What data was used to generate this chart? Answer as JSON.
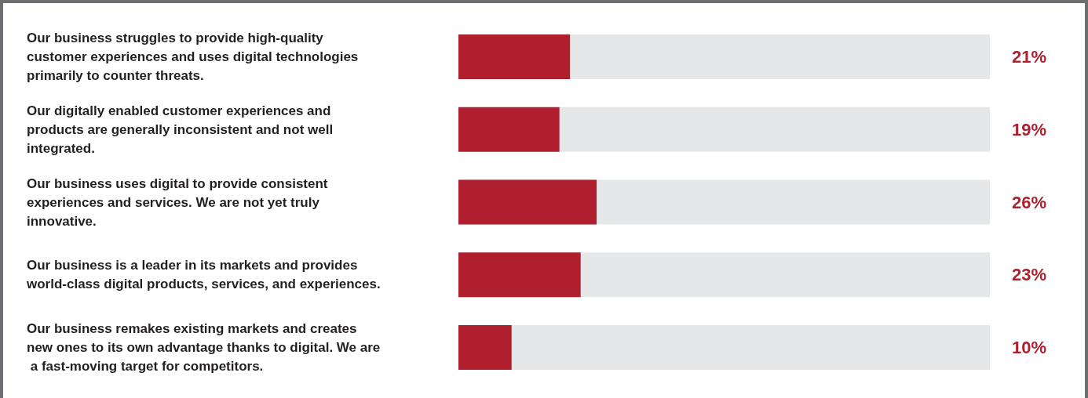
{
  "chart_data": {
    "type": "bar",
    "orientation": "horizontal",
    "categories": [
      "Our business struggles to provide high-quality customer experiences and uses digital technologies primarily to counter threats.",
      "Our digitally enabled customer experiences and products are generally inconsistent and not well integrated.",
      "Our business uses digital to provide consistent experiences and services. We are not yet truly innovative.",
      "Our business is a leader in its markets and provides world-class digital products, services, and experiences.",
      "Our business remakes existing markets and creates new ones to its own advantage thanks to digital. We are a fast-moving target for competitors."
    ],
    "values": [
      21,
      19,
      26,
      23,
      10
    ],
    "value_labels": [
      "21%",
      "19%",
      "26%",
      "23%",
      "10%"
    ],
    "color": "#b01f2e",
    "xlim": [
      0,
      100
    ],
    "tick_labels": "y"
  }
}
